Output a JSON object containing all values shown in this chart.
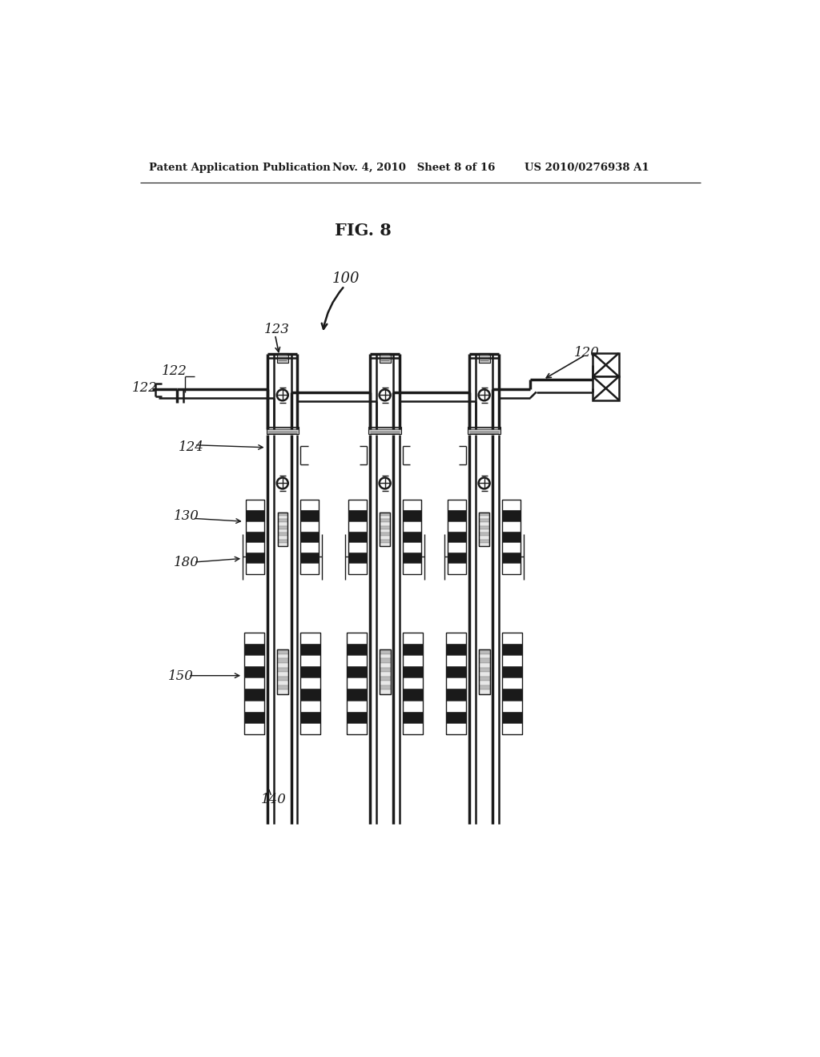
{
  "bg_color": "#ffffff",
  "header_left": "Patent Application Publication",
  "header_mid": "Nov. 4, 2010   Sheet 8 of 16",
  "header_right": "US 2010/0276938 A1",
  "fig_title": "FIG. 8",
  "line_color": "#1a1a1a",
  "lw": 1.8,
  "lw_thin": 1.0,
  "lw_thick": 2.5
}
